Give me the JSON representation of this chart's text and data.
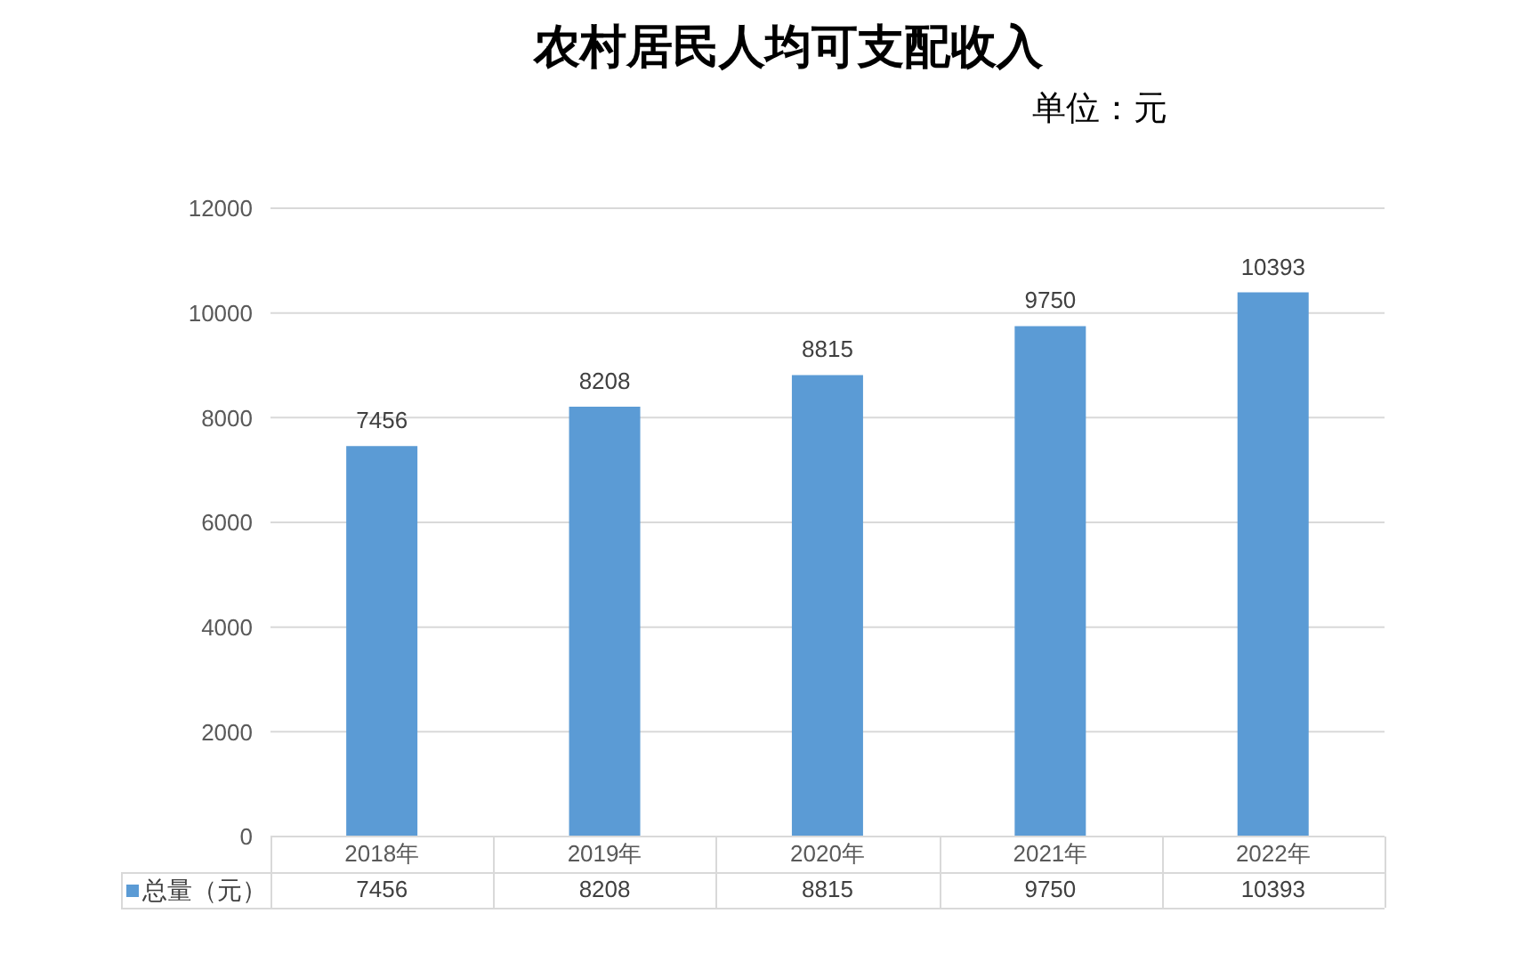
{
  "chart_data": {
    "type": "bar",
    "title": "农村居民人均可支配收入",
    "subtitle": "单位：元",
    "categories": [
      "2018年",
      "2019年",
      "2020年",
      "2021年",
      "2022年"
    ],
    "series": [
      {
        "name": "总量（元）",
        "color": "#5b9bd5",
        "values": [
          7456,
          8208,
          8815,
          9750,
          10393
        ]
      }
    ],
    "ylim": [
      0,
      12000
    ],
    "yticks": [
      0,
      2000,
      4000,
      6000,
      8000,
      10000,
      12000
    ],
    "annotations": [
      {
        "text": "7456",
        "x": "2018年",
        "y": 7456
      },
      {
        "text": "8208",
        "x": "2019年",
        "y": 8208
      },
      {
        "text": "8815",
        "x": "2020年",
        "y": 8815
      },
      {
        "text": "9750",
        "x": "2021年",
        "y": 9750
      },
      {
        "text": "10393",
        "x": "2022年",
        "y": 10393
      }
    ],
    "grid": "y",
    "legend": "bottom left",
    "data_labels": true
  }
}
